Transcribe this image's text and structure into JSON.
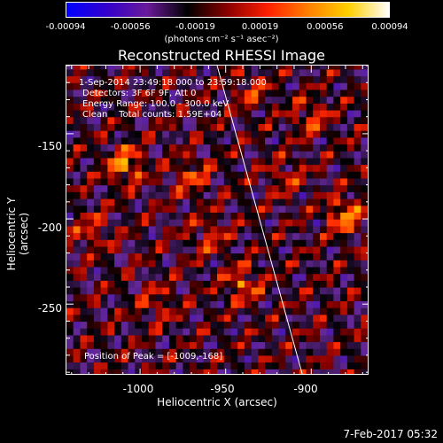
{
  "colorbar": {
    "ticks": [
      "-0.00094",
      "-0.00056",
      "-0.00019",
      "0.00019",
      "0.00056",
      "0.00094"
    ],
    "units": "(photons cm⁻² s⁻¹ asec⁻²)",
    "colormap": [
      "#0000ff",
      "#3300cc",
      "#6a1a9a",
      "#000000",
      "#8b0000",
      "#ff2000",
      "#ff8000",
      "#ffd000",
      "#ffffff"
    ]
  },
  "header": {
    "title": "Reconstructed RHESSI Image"
  },
  "info": {
    "line1": "1-Sep-2014 23:49:18.000 to 23:59:18.000",
    "line2": "Detectors: 3F 6F 9F, Att 0",
    "line3": "Energy Range: 100.0 - 300.0 keV",
    "line4": "Clean    Total counts: 1.59E+04",
    "peak": "Position of Peak = [-1009,-168]"
  },
  "chart_data": {
    "type": "heatmap",
    "title": "Reconstructed RHESSI Image",
    "xlabel": "Heliocentric X (arcsec)",
    "ylabel": "Heliocentric Y (arcsec)",
    "xlim": [
      -1043,
      -866
    ],
    "ylim": [
      -292,
      -110
    ],
    "xticks": [
      -1000,
      -950,
      -900
    ],
    "xtick_labels": [
      "-1000",
      "-950",
      "-900"
    ],
    "yticks": [
      -150,
      -200,
      -250
    ],
    "ytick_labels": [
      "-150",
      "-200",
      "-250"
    ],
    "color_range": [
      -0.00094,
      0.00094
    ],
    "limb_line": [
      [
        -955,
        -110
      ],
      [
        -905,
        -292
      ]
    ],
    "peak": [
      -1009,
      -168
    ],
    "bright_regions": [
      {
        "x": -1009,
        "y": -168,
        "value": 0.00094
      },
      {
        "x": -880,
        "y": -198,
        "value": 0.0009
      },
      {
        "x": -940,
        "y": -238,
        "value": 0.0007
      },
      {
        "x": -970,
        "y": -175,
        "value": 0.0006
      },
      {
        "x": -1028,
        "y": -207,
        "value": 0.0005
      },
      {
        "x": -960,
        "y": -210,
        "value": 0.0005
      },
      {
        "x": -990,
        "y": -250,
        "value": 0.00045
      },
      {
        "x": -900,
        "y": -140,
        "value": 0.0006
      },
      {
        "x": -915,
        "y": -175,
        "value": 0.00045
      },
      {
        "x": -935,
        "y": -125,
        "value": 0.0005
      }
    ]
  },
  "footer": {
    "timestamp": "7-Feb-2017 05:32"
  }
}
